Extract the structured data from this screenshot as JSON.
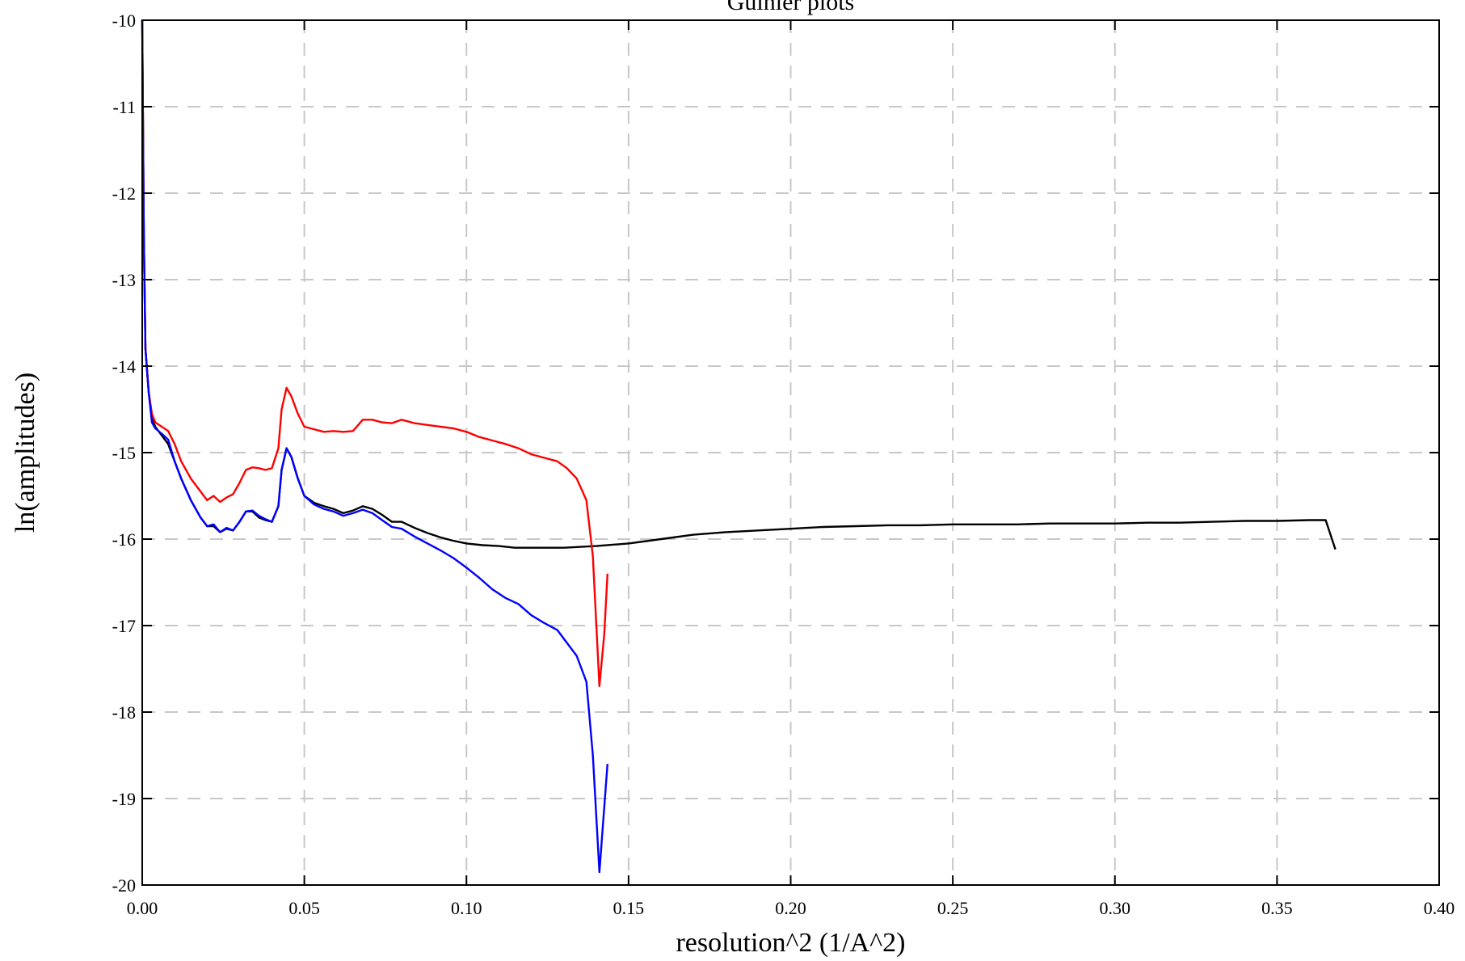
{
  "chart_data": {
    "type": "line",
    "title": "Guinier plots",
    "xlabel": "resolution^2 (1/A^2)",
    "ylabel": "ln(amplitudes)",
    "xlim": [
      0,
      0.4
    ],
    "ylim": [
      -20,
      -10
    ],
    "x_ticks": [
      "0.00",
      "0.05",
      "0.10",
      "0.15",
      "0.20",
      "0.25",
      "0.30",
      "0.35",
      "0.40"
    ],
    "y_ticks": [
      "-10",
      "-11",
      "-12",
      "-13",
      "-14",
      "-15",
      "-16",
      "-17",
      "-18",
      "-19",
      "-20"
    ],
    "grid": true,
    "legend": "none",
    "series": [
      {
        "color": "#000000",
        "points": [
          [
            0.0,
            -10.0
          ],
          [
            0.0005,
            -12.5
          ],
          [
            0.001,
            -13.8
          ],
          [
            0.002,
            -14.3
          ],
          [
            0.003,
            -14.6
          ],
          [
            0.004,
            -14.7
          ],
          [
            0.006,
            -14.8
          ],
          [
            0.008,
            -14.9
          ],
          [
            0.01,
            -15.1
          ],
          [
            0.012,
            -15.3
          ],
          [
            0.015,
            -15.55
          ],
          [
            0.018,
            -15.75
          ],
          [
            0.02,
            -15.85
          ],
          [
            0.022,
            -15.85
          ],
          [
            0.024,
            -15.92
          ],
          [
            0.026,
            -15.88
          ],
          [
            0.028,
            -15.9
          ],
          [
            0.03,
            -15.8
          ],
          [
            0.032,
            -15.68
          ],
          [
            0.034,
            -15.68
          ],
          [
            0.036,
            -15.75
          ],
          [
            0.038,
            -15.78
          ],
          [
            0.04,
            -15.8
          ],
          [
            0.042,
            -15.62
          ],
          [
            0.043,
            -15.2
          ],
          [
            0.0445,
            -14.95
          ],
          [
            0.046,
            -15.05
          ],
          [
            0.048,
            -15.3
          ],
          [
            0.05,
            -15.5
          ],
          [
            0.053,
            -15.58
          ],
          [
            0.056,
            -15.62
          ],
          [
            0.059,
            -15.65
          ],
          [
            0.062,
            -15.7
          ],
          [
            0.065,
            -15.67
          ],
          [
            0.068,
            -15.62
          ],
          [
            0.071,
            -15.65
          ],
          [
            0.074,
            -15.72
          ],
          [
            0.077,
            -15.8
          ],
          [
            0.08,
            -15.8
          ],
          [
            0.084,
            -15.87
          ],
          [
            0.088,
            -15.93
          ],
          [
            0.092,
            -15.98
          ],
          [
            0.096,
            -16.02
          ],
          [
            0.1,
            -16.05
          ],
          [
            0.105,
            -16.07
          ],
          [
            0.11,
            -16.08
          ],
          [
            0.115,
            -16.1
          ],
          [
            0.12,
            -16.1
          ],
          [
            0.13,
            -16.1
          ],
          [
            0.14,
            -16.08
          ],
          [
            0.15,
            -16.05
          ],
          [
            0.16,
            -16.0
          ],
          [
            0.17,
            -15.95
          ],
          [
            0.18,
            -15.92
          ],
          [
            0.19,
            -15.9
          ],
          [
            0.2,
            -15.88
          ],
          [
            0.21,
            -15.86
          ],
          [
            0.22,
            -15.85
          ],
          [
            0.23,
            -15.84
          ],
          [
            0.24,
            -15.84
          ],
          [
            0.25,
            -15.83
          ],
          [
            0.26,
            -15.83
          ],
          [
            0.27,
            -15.83
          ],
          [
            0.28,
            -15.82
          ],
          [
            0.29,
            -15.82
          ],
          [
            0.3,
            -15.82
          ],
          [
            0.31,
            -15.81
          ],
          [
            0.32,
            -15.81
          ],
          [
            0.33,
            -15.8
          ],
          [
            0.34,
            -15.79
          ],
          [
            0.35,
            -15.79
          ],
          [
            0.36,
            -15.78
          ],
          [
            0.365,
            -15.78
          ],
          [
            0.368,
            -16.12
          ]
        ]
      },
      {
        "color": "#ff0000",
        "points": [
          [
            0.0,
            -10.0
          ],
          [
            0.0005,
            -12.5
          ],
          [
            0.001,
            -13.8
          ],
          [
            0.002,
            -14.3
          ],
          [
            0.003,
            -14.55
          ],
          [
            0.004,
            -14.65
          ],
          [
            0.006,
            -14.7
          ],
          [
            0.008,
            -14.75
          ],
          [
            0.01,
            -14.9
          ],
          [
            0.012,
            -15.1
          ],
          [
            0.015,
            -15.3
          ],
          [
            0.018,
            -15.45
          ],
          [
            0.02,
            -15.55
          ],
          [
            0.022,
            -15.5
          ],
          [
            0.024,
            -15.57
          ],
          [
            0.026,
            -15.52
          ],
          [
            0.028,
            -15.48
          ],
          [
            0.03,
            -15.35
          ],
          [
            0.032,
            -15.2
          ],
          [
            0.034,
            -15.17
          ],
          [
            0.036,
            -15.18
          ],
          [
            0.038,
            -15.2
          ],
          [
            0.04,
            -15.18
          ],
          [
            0.042,
            -14.95
          ],
          [
            0.043,
            -14.5
          ],
          [
            0.0445,
            -14.25
          ],
          [
            0.046,
            -14.35
          ],
          [
            0.048,
            -14.55
          ],
          [
            0.05,
            -14.7
          ],
          [
            0.053,
            -14.73
          ],
          [
            0.056,
            -14.76
          ],
          [
            0.059,
            -14.75
          ],
          [
            0.062,
            -14.76
          ],
          [
            0.065,
            -14.75
          ],
          [
            0.068,
            -14.62
          ],
          [
            0.071,
            -14.62
          ],
          [
            0.074,
            -14.65
          ],
          [
            0.077,
            -14.66
          ],
          [
            0.08,
            -14.62
          ],
          [
            0.084,
            -14.66
          ],
          [
            0.088,
            -14.68
          ],
          [
            0.092,
            -14.7
          ],
          [
            0.096,
            -14.72
          ],
          [
            0.1,
            -14.76
          ],
          [
            0.104,
            -14.82
          ],
          [
            0.108,
            -14.86
          ],
          [
            0.112,
            -14.9
          ],
          [
            0.116,
            -14.95
          ],
          [
            0.12,
            -15.02
          ],
          [
            0.124,
            -15.06
          ],
          [
            0.128,
            -15.1
          ],
          [
            0.131,
            -15.18
          ],
          [
            0.134,
            -15.3
          ],
          [
            0.137,
            -15.55
          ],
          [
            0.139,
            -16.2
          ],
          [
            0.141,
            -17.7
          ],
          [
            0.1425,
            -17.1
          ],
          [
            0.1435,
            -16.4
          ]
        ]
      },
      {
        "color": "#0000ff",
        "points": [
          [
            0.0,
            -10.0
          ],
          [
            0.0005,
            -12.5
          ],
          [
            0.001,
            -13.8
          ],
          [
            0.002,
            -14.3
          ],
          [
            0.003,
            -14.65
          ],
          [
            0.004,
            -14.72
          ],
          [
            0.006,
            -14.78
          ],
          [
            0.008,
            -14.85
          ],
          [
            0.01,
            -15.1
          ],
          [
            0.012,
            -15.3
          ],
          [
            0.015,
            -15.55
          ],
          [
            0.018,
            -15.75
          ],
          [
            0.02,
            -15.85
          ],
          [
            0.022,
            -15.83
          ],
          [
            0.024,
            -15.92
          ],
          [
            0.026,
            -15.87
          ],
          [
            0.028,
            -15.9
          ],
          [
            0.03,
            -15.8
          ],
          [
            0.032,
            -15.68
          ],
          [
            0.034,
            -15.67
          ],
          [
            0.036,
            -15.73
          ],
          [
            0.038,
            -15.77
          ],
          [
            0.04,
            -15.8
          ],
          [
            0.042,
            -15.62
          ],
          [
            0.043,
            -15.2
          ],
          [
            0.0445,
            -14.95
          ],
          [
            0.046,
            -15.05
          ],
          [
            0.048,
            -15.3
          ],
          [
            0.05,
            -15.5
          ],
          [
            0.053,
            -15.6
          ],
          [
            0.056,
            -15.65
          ],
          [
            0.059,
            -15.68
          ],
          [
            0.062,
            -15.73
          ],
          [
            0.065,
            -15.7
          ],
          [
            0.068,
            -15.66
          ],
          [
            0.071,
            -15.7
          ],
          [
            0.074,
            -15.78
          ],
          [
            0.077,
            -15.86
          ],
          [
            0.08,
            -15.88
          ],
          [
            0.084,
            -15.97
          ],
          [
            0.088,
            -16.05
          ],
          [
            0.092,
            -16.13
          ],
          [
            0.096,
            -16.22
          ],
          [
            0.1,
            -16.33
          ],
          [
            0.104,
            -16.45
          ],
          [
            0.108,
            -16.58
          ],
          [
            0.112,
            -16.68
          ],
          [
            0.116,
            -16.75
          ],
          [
            0.12,
            -16.88
          ],
          [
            0.124,
            -16.97
          ],
          [
            0.128,
            -17.05
          ],
          [
            0.131,
            -17.2
          ],
          [
            0.134,
            -17.35
          ],
          [
            0.137,
            -17.65
          ],
          [
            0.139,
            -18.5
          ],
          [
            0.141,
            -19.85
          ],
          [
            0.1425,
            -19.1
          ],
          [
            0.1435,
            -18.6
          ]
        ]
      }
    ]
  }
}
